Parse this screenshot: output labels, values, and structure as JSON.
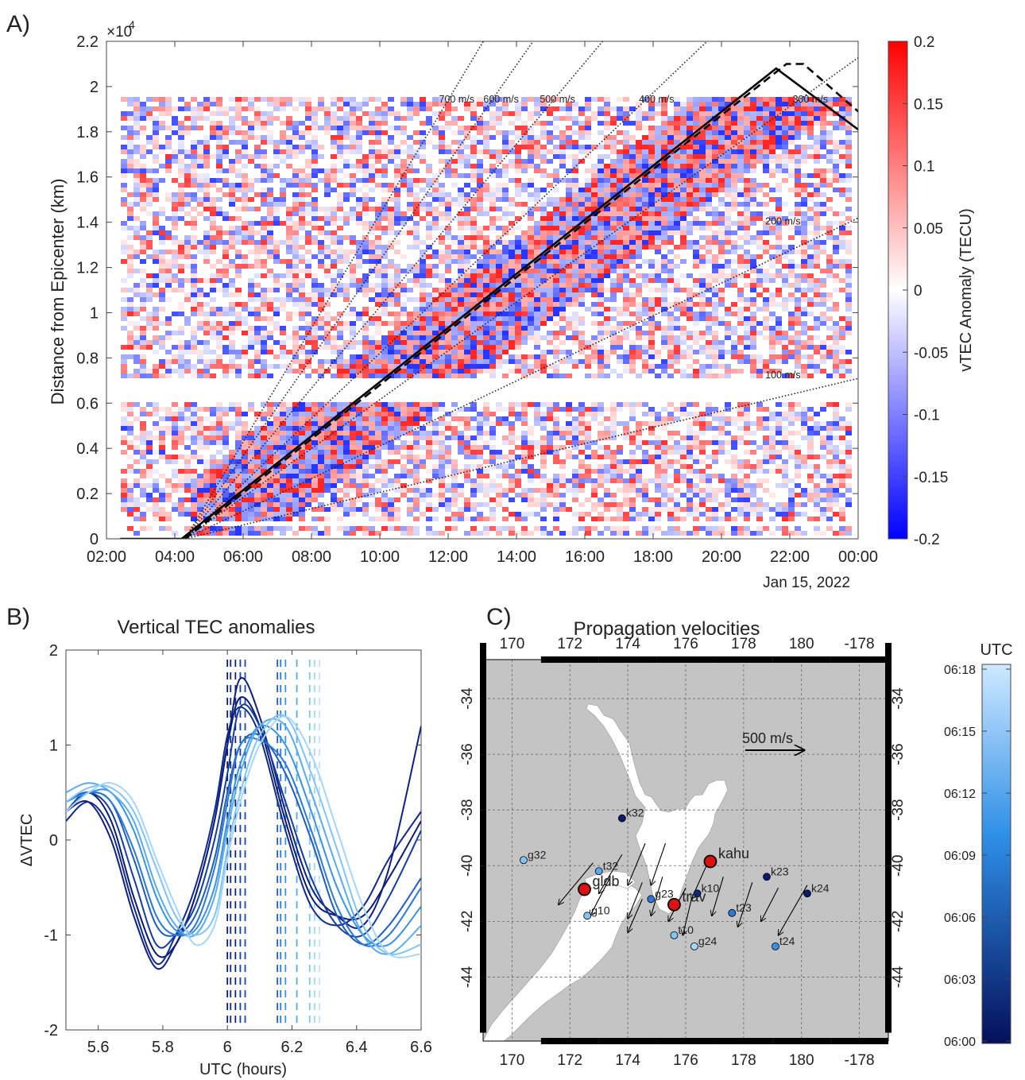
{
  "chart_data": [
    {
      "panel": "A)",
      "type": "heatmap",
      "title": "",
      "ylabel": "Distance from Epicenter (km)",
      "y_exponent": "×10",
      "y_exponent_power": "4",
      "yticks": [
        0,
        0.2,
        0.4,
        0.6,
        0.8,
        1,
        1.2,
        1.4,
        1.6,
        1.8,
        2,
        2.2
      ],
      "ylim": [
        0,
        2.2
      ],
      "xticks": [
        "02:00",
        "04:00",
        "06:00",
        "08:00",
        "10:00",
        "12:00",
        "14:00",
        "16:00",
        "18:00",
        "20:00",
        "22:00",
        "00:00"
      ],
      "xlim_hours": [
        2,
        24
      ],
      "date_label": "Jan 15, 2022",
      "colorbar": {
        "label": "vTEC Anomaly (TECU)",
        "ticks": [
          "0.2",
          "0.15",
          "0.1",
          "0.05",
          "0",
          "-0.05",
          "-0.1",
          "-0.15",
          "-0.2"
        ],
        "range": [
          -0.2,
          0.2
        ],
        "low_color": "#0000ff",
        "mid_color": "#ffffff",
        "high_color": "#ff0000"
      },
      "origin_hours": 4.3,
      "velocity_lines": [
        {
          "label": "700 m/s",
          "speed_ms": 700,
          "label_hours": 12.25,
          "label_value": 1.93
        },
        {
          "label": "600 m/s",
          "speed_ms": 600,
          "label_hours": 13.55,
          "label_value": 1.93
        },
        {
          "label": "500 m/s",
          "speed_ms": 500,
          "label_hours": 15.2,
          "label_value": 1.93
        },
        {
          "label": "400 m/s",
          "speed_ms": 400,
          "label_hours": 18.1,
          "label_value": 1.93
        },
        {
          "label": "300 m/s",
          "speed_ms": 300,
          "label_hours": 22.6,
          "label_value": 1.93
        },
        {
          "label": "200 m/s",
          "speed_ms": 200,
          "label_hours": 21.8,
          "label_value": 1.39
        },
        {
          "label": "100 m/s",
          "speed_ms": 100,
          "label_hours": 21.8,
          "label_value": 0.71
        }
      ],
      "solid_line": [
        [
          2.4,
          0
        ],
        [
          4.2,
          0
        ],
        [
          21.6,
          2.08
        ],
        [
          24,
          1.81
        ]
      ],
      "dashed_line": [
        [
          4.3,
          0
        ],
        [
          21.9,
          2.1
        ],
        [
          22.4,
          2.1
        ],
        [
          24,
          1.89
        ]
      ]
    },
    {
      "panel": "B)",
      "type": "line",
      "title": "Vertical TEC anomalies",
      "xlabel": "UTC (hours)",
      "ylabel": "ΔVTEC",
      "xlim": [
        5.5,
        6.6
      ],
      "ylim": [
        -2,
        2
      ],
      "xticks": [
        "5.6",
        "5.8",
        "6",
        "6.2",
        "6.4",
        "6.6"
      ],
      "yticks": [
        "2",
        "1",
        "0",
        "-1",
        "-2"
      ],
      "series": [
        {
          "values": [
            0.3,
            0.5,
            0.2,
            -0.6,
            -1.2,
            -1.1,
            -0.6,
            0.2,
            1.0,
            1.5,
            1.2,
            0.2,
            -0.6,
            -0.8,
            -0.8,
            -0.4,
            0.2
          ],
          "color": "#0a1a6e"
        },
        {
          "values": [
            0.2,
            0.4,
            0.1,
            -0.7,
            -1.3,
            -1.0,
            -0.5,
            0.3,
            1.1,
            1.4,
            1.1,
            0.1,
            -0.7,
            -0.9,
            -0.7,
            -0.2,
            0.3
          ],
          "color": "#0d2a8a"
        },
        {
          "values": [
            0.3,
            0.4,
            0.0,
            -0.8,
            -1.35,
            -1.1,
            -0.6,
            0.2,
            1.0,
            1.7,
            1.3,
            0.3,
            -0.5,
            -0.8,
            -0.9,
            -0.3,
            1.2
          ],
          "color": "#102080"
        },
        {
          "values": [
            0.4,
            0.5,
            0.3,
            -0.4,
            -1.1,
            -1.0,
            -0.7,
            0.0,
            0.7,
            1.4,
            1.2,
            0.4,
            -0.4,
            -0.9,
            -1.0,
            -0.6,
            0.1
          ],
          "color": "#143c9e"
        },
        {
          "values": [
            0.4,
            0.5,
            0.4,
            -0.2,
            -0.9,
            -1.0,
            -0.8,
            -0.2,
            0.5,
            1.0,
            1.1,
            0.7,
            0.0,
            -0.8,
            -1.1,
            -0.9,
            -0.4
          ],
          "color": "#1e5cc0"
        },
        {
          "values": [
            0.3,
            0.5,
            0.4,
            -0.1,
            -0.8,
            -1.0,
            -0.9,
            -0.3,
            0.4,
            1.0,
            1.05,
            0.8,
            0.1,
            -0.7,
            -1.1,
            -1.0,
            -0.5
          ],
          "color": "#2a78d8"
        },
        {
          "values": [
            0.4,
            0.5,
            0.5,
            0.1,
            -0.6,
            -0.95,
            -0.95,
            -0.5,
            0.2,
            0.8,
            1.2,
            1.0,
            0.3,
            -0.5,
            -1.0,
            -1.1,
            -0.7
          ],
          "color": "#3a92e6"
        },
        {
          "values": [
            0.5,
            0.6,
            0.5,
            0.2,
            -0.5,
            -0.9,
            -1.0,
            -0.6,
            0.1,
            0.7,
            1.2,
            1.2,
            0.5,
            -0.3,
            -1.0,
            -1.2,
            -0.9
          ],
          "color": "#5aaaf0"
        },
        {
          "values": [
            0.4,
            0.55,
            0.55,
            0.3,
            -0.3,
            -0.8,
            -1.0,
            -0.8,
            -0.1,
            0.5,
            1.1,
            1.3,
            0.7,
            -0.1,
            -0.9,
            -1.2,
            -1.1
          ],
          "color": "#80c4f8"
        },
        {
          "values": [
            0.3,
            0.5,
            0.6,
            0.4,
            -0.2,
            -0.7,
            -1.1,
            -0.9,
            -0.2,
            0.4,
            1.0,
            1.3,
            0.9,
            0.1,
            -0.7,
            -1.2,
            -1.2
          ],
          "color": "#a6d6fb"
        }
      ],
      "x_values": [
        5.5,
        5.57,
        5.64,
        5.71,
        5.78,
        5.84,
        5.9,
        5.96,
        6.0,
        6.04,
        6.1,
        6.18,
        6.26,
        6.34,
        6.42,
        6.5,
        6.6
      ],
      "arrival_lines": [
        {
          "x": 6.0,
          "color": "#0a1a6e"
        },
        {
          "x": 6.01,
          "color": "#0d2a8a"
        },
        {
          "x": 6.025,
          "color": "#102080"
        },
        {
          "x": 6.04,
          "color": "#143c9e"
        },
        {
          "x": 6.055,
          "color": "#1a4aae"
        },
        {
          "x": 6.155,
          "color": "#1e5cc0"
        },
        {
          "x": 6.165,
          "color": "#2a78d8"
        },
        {
          "x": 6.18,
          "color": "#3a92e6"
        },
        {
          "x": 6.215,
          "color": "#5aaaf0"
        },
        {
          "x": 6.255,
          "color": "#80c4f8"
        },
        {
          "x": 6.27,
          "color": "#a6d6fb"
        },
        {
          "x": 6.285,
          "color": "#c0e4fd"
        }
      ]
    },
    {
      "panel": "C)",
      "type": "scatter",
      "title": "Propagation velocities",
      "lon_ticks": [
        "170",
        "172",
        "174",
        "176",
        "178",
        "180",
        "-178"
      ],
      "lon_tick_values": [
        170,
        172,
        174,
        176,
        178,
        180,
        182
      ],
      "lat_ticks": [
        "-34",
        "-36",
        "-38",
        "-40",
        "-42",
        "-44"
      ],
      "lat_tick_values": [
        -34,
        -36,
        -38,
        -40,
        -42,
        -44
      ],
      "lon_range": [
        169,
        183
      ],
      "lat_range": [
        -46.3,
        -32.6
      ],
      "scale_arrow_label": "500 m/s",
      "colorbar": {
        "label": "UTC",
        "ticks": [
          "06:18",
          "06:15",
          "06:12",
          "06:09",
          "06:06",
          "06:03",
          "06:00"
        ],
        "low_color": "#05105a",
        "high_color": "#cfe9ff"
      },
      "stations": [
        {
          "name": "k32",
          "lon": 173.8,
          "lat": -38.3,
          "color": "#0a1a6e"
        },
        {
          "name": "g32",
          "lon": 170.4,
          "lat": -39.8,
          "color": "#80c4f8"
        },
        {
          "name": "t32",
          "lon": 173.0,
          "lat": -40.2,
          "color": "#5aaaf0"
        },
        {
          "name": "g23",
          "lon": 174.8,
          "lat": -41.2,
          "color": "#2a78d8"
        },
        {
          "name": "k10",
          "lon": 176.4,
          "lat": -41.0,
          "color": "#0d2a8a"
        },
        {
          "name": "k23",
          "lon": 178.8,
          "lat": -40.4,
          "color": "#0a1a6e"
        },
        {
          "name": "k24",
          "lon": 180.2,
          "lat": -41.0,
          "color": "#0a1a6e"
        },
        {
          "name": "g10",
          "lon": 172.6,
          "lat": -41.8,
          "color": "#80c4f8"
        },
        {
          "name": "t23",
          "lon": 177.6,
          "lat": -41.7,
          "color": "#2a78d8"
        },
        {
          "name": "t10",
          "lon": 175.6,
          "lat": -42.5,
          "color": "#80c4f8"
        },
        {
          "name": "g24",
          "lon": 176.3,
          "lat": -42.9,
          "color": "#a6d6fb"
        },
        {
          "name": "t24",
          "lon": 179.1,
          "lat": -42.9,
          "color": "#3a92e6"
        }
      ],
      "big_stations": [
        {
          "name": "gldb",
          "lon": 172.5,
          "lat": -40.85
        },
        {
          "name": "kahu",
          "lon": 176.85,
          "lat": -39.85
        },
        {
          "name": "trav",
          "lon": 175.6,
          "lat": -41.4
        }
      ],
      "arrows": [
        {
          "lon": 172.8,
          "lat": -39.9,
          "dlon": -1.2,
          "dlat": -1.5
        },
        {
          "lon": 173.8,
          "lat": -39.6,
          "dlon": -0.8,
          "dlat": -1.4
        },
        {
          "lon": 174.6,
          "lat": -39.2,
          "dlon": -0.6,
          "dlat": -1.5
        },
        {
          "lon": 175.3,
          "lat": -39.2,
          "dlon": -0.5,
          "dlat": -1.5
        },
        {
          "lon": 173.4,
          "lat": -40.4,
          "dlon": -0.7,
          "dlat": -1.4
        },
        {
          "lon": 174.5,
          "lat": -40.6,
          "dlon": -0.5,
          "dlat": -1.3
        },
        {
          "lon": 175.2,
          "lat": -40.4,
          "dlon": -0.4,
          "dlat": -1.4
        },
        {
          "lon": 176.0,
          "lat": -40.8,
          "dlon": -0.6,
          "dlat": -1.2
        },
        {
          "lon": 176.8,
          "lat": -39.8,
          "dlon": -0.6,
          "dlat": -1.4
        },
        {
          "lon": 177.3,
          "lat": -40.4,
          "dlon": -0.4,
          "dlat": -1.4
        },
        {
          "lon": 174.5,
          "lat": -41.2,
          "dlon": -0.5,
          "dlat": -1.2
        },
        {
          "lon": 176.2,
          "lat": -41.2,
          "dlon": -0.3,
          "dlat": -1.3
        },
        {
          "lon": 178.3,
          "lat": -40.6,
          "dlon": -0.5,
          "dlat": -1.6
        },
        {
          "lon": 179.2,
          "lat": -40.8,
          "dlon": -0.6,
          "dlat": -1.2
        },
        {
          "lon": 180.2,
          "lat": -40.7,
          "dlon": -1.0,
          "dlat": -1.8
        }
      ]
    }
  ]
}
